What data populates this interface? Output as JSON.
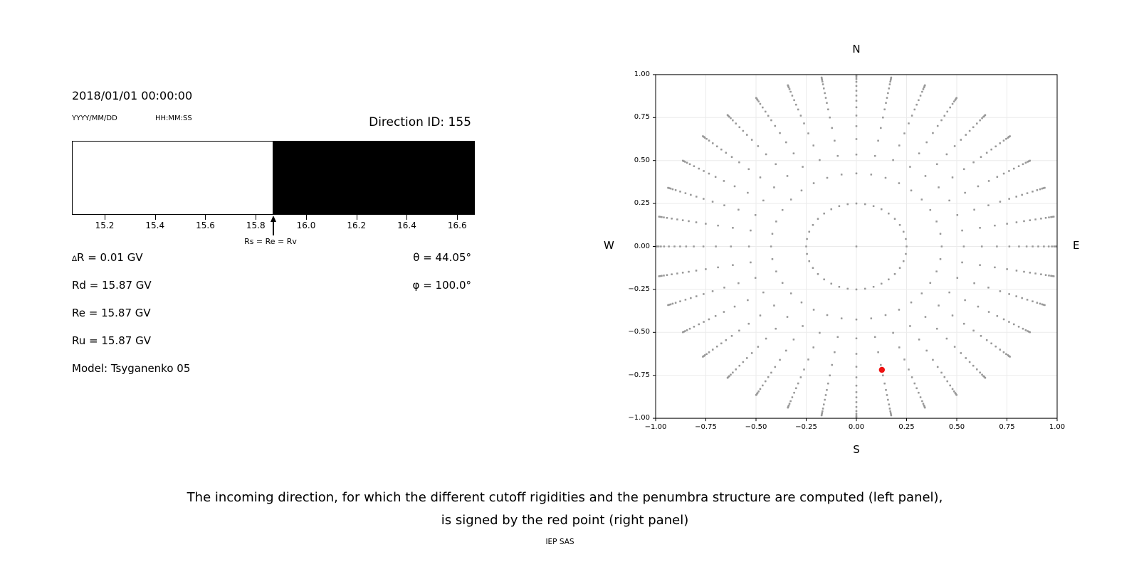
{
  "header": {
    "datetime": "2018/01/01 00:00:00",
    "date_format_label": "YYYY/MM/DD",
    "time_format_label": "HH:MM:SS",
    "direction_id": "Direction ID: 155"
  },
  "parameters": {
    "delta_row": {
      "symbol": "∆",
      "text": "R = 0.01 GV"
    },
    "rd": "Rd = 15.87 GV",
    "re": "Re = 15.87 GV",
    "ru": "Ru = 15.87 GV",
    "model": "Model: Tsyganenko 05",
    "theta": "θ = 44.05°",
    "phi": "φ = 100.0°"
  },
  "caption": {
    "line1": "The incoming direction, for which the different cutoff rigidities and the penumbra structure are computed (left panel),",
    "line2": "is signed by the red point (right panel)",
    "credit": "IEP SAS"
  },
  "chart_data": [
    {
      "id": "penumbra-structure",
      "type": "bar",
      "x_range": [
        15.07,
        16.67
      ],
      "x_tick_values": [
        15.2,
        15.4,
        15.6,
        15.8,
        16.0,
        16.2,
        16.4,
        16.6
      ],
      "x_tick_labels": [
        "15.2",
        "15.4",
        "15.6",
        "15.8",
        "16.0",
        "16.2",
        "16.4",
        "16.6"
      ],
      "bands": [
        {
          "from": 15.07,
          "to": 15.87,
          "color": "#ffffff",
          "meaning": "allowed rigidity band"
        },
        {
          "from": 15.87,
          "to": 16.67,
          "color": "#000000",
          "meaning": "forbidden rigidity band"
        }
      ],
      "annotation": {
        "text": "Rs = Re = Rv",
        "x": 15.87
      }
    },
    {
      "id": "incoming-direction-map",
      "type": "scatter",
      "xlim": [
        -1,
        1
      ],
      "ylim": [
        -1,
        1
      ],
      "x_tick_values": [
        -1.0,
        -0.75,
        -0.5,
        -0.25,
        0.0,
        0.25,
        0.5,
        0.75,
        1.0
      ],
      "x_tick_labels": [
        "−1.00",
        "−0.75",
        "−0.50",
        "−0.25",
        "0.00",
        "0.25",
        "0.50",
        "0.75",
        "1.00"
      ],
      "y_tick_values": [
        1.0,
        0.75,
        0.5,
        0.25,
        0.0,
        -0.25,
        -0.5,
        -0.75,
        -1.0
      ],
      "y_tick_labels": [
        "1.00",
        "0.75",
        "0.50",
        "0.25",
        "0.00",
        "−0.25",
        "−0.50",
        "−0.75",
        "−1.00"
      ],
      "compass": {
        "top": "N",
        "bottom": "S",
        "left": "W",
        "right": "E"
      },
      "grid": true,
      "grid_color": "#ebebeb",
      "dot_color": "#999999",
      "n_spokes": 36,
      "azimuth_step_deg": 10,
      "ring_radii": [
        0.25,
        0.425,
        0.535,
        0.625,
        0.7,
        0.762,
        0.81,
        0.848,
        0.878,
        0.906,
        0.934,
        0.958,
        0.974,
        0.985,
        0.992,
        0.998
      ],
      "center_point": {
        "x": 0,
        "y": 0
      },
      "red_point": {
        "x": 0.127,
        "y": -0.718,
        "r": 0.729,
        "color": "#ee1111"
      }
    }
  ]
}
